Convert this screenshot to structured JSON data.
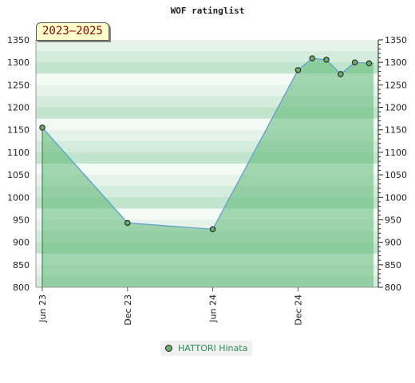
{
  "chart_data": {
    "type": "area",
    "title": "WOF ratinglist",
    "period_label": "2023–2025",
    "x_ticks": [
      "Jun 23",
      "Dec 23",
      "Jun 24",
      "Dec 24"
    ],
    "x_range": [
      "2023-06",
      "2025-04"
    ],
    "ylim": [
      800,
      1350
    ],
    "y_ticks": [
      800,
      850,
      900,
      950,
      1000,
      1050,
      1100,
      1150,
      1200,
      1250,
      1300,
      1350
    ],
    "y_axis_sides": [
      "left",
      "right"
    ],
    "series": [
      {
        "name": "HATTORI Hinata",
        "x": [
          "2023-06",
          "2023-12",
          "2024-06",
          "2024-12",
          "2025-01",
          "2025-02",
          "2025-03",
          "2025-04",
          "2025-05"
        ],
        "y": [
          1155,
          943,
          929,
          1283,
          1309,
          1306,
          1274,
          1300,
          1298
        ]
      }
    ],
    "colors": {
      "line": "#5b9bd5",
      "fill": "#5fb877",
      "marker": "#6aaa6a"
    },
    "legend_position": "bottom-center",
    "grid": "horizontal bands"
  }
}
